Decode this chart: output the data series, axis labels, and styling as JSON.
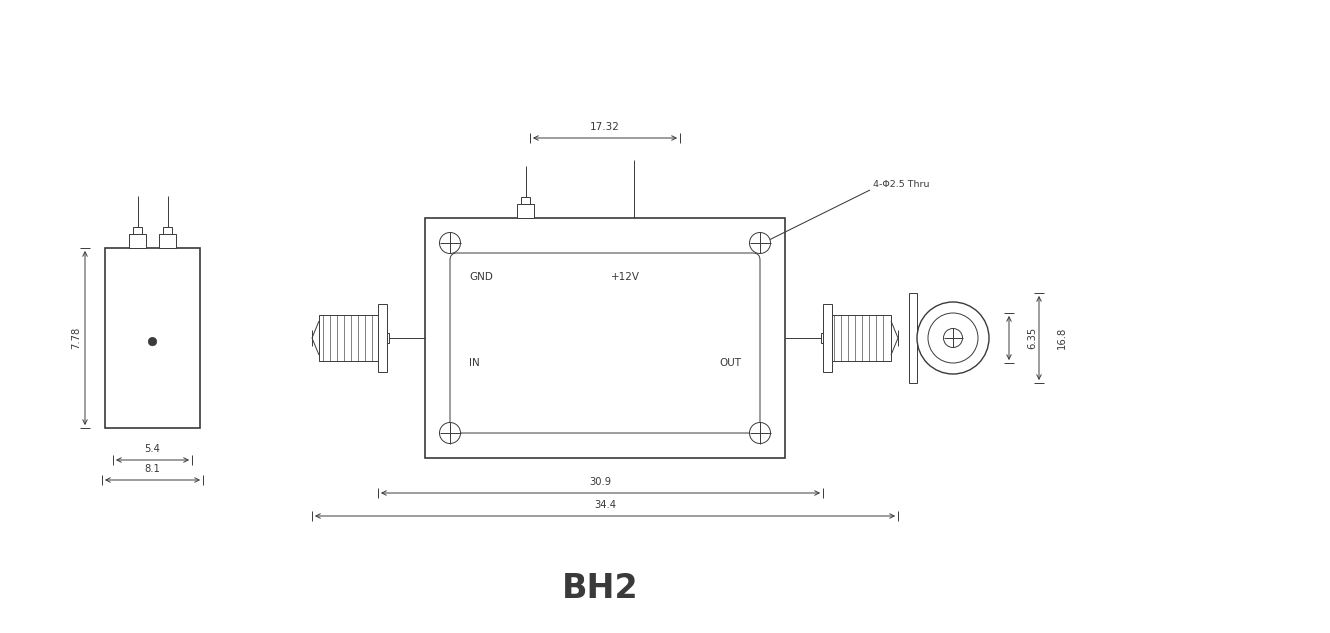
{
  "title": "BH2",
  "title_fontsize": 24,
  "line_color": "#3a3a3a",
  "background_color": "#ffffff",
  "dim_17_32": "17.32",
  "dim_7_78": "7.78",
  "dim_5_4": "5.4",
  "dim_8_1": "8.1",
  "dim_30_9": "30.9",
  "dim_34_4": "34.4",
  "dim_6_35": "6.35",
  "dim_16_8": "16.8",
  "label_4phi": "4-Φ2.5 Thru",
  "label_gnd": "GND",
  "label_12v": "+12V",
  "label_in": "IN",
  "label_out": "OUT"
}
